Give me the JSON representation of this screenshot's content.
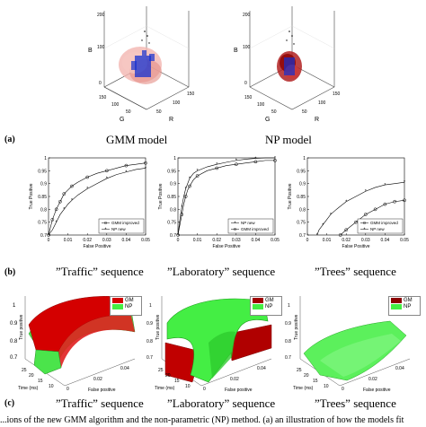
{
  "row_a": {
    "label": "(a)",
    "captions": [
      "GMM model",
      "NP model"
    ],
    "panels": [
      {
        "axis_b": "B",
        "axis_g": "G",
        "axis_r": "R",
        "ticks_z": [
          "200",
          "100",
          "0"
        ],
        "ticks_g": [
          "150",
          "100",
          "50"
        ],
        "ticks_r": [
          "50",
          "100",
          "150"
        ]
      },
      {
        "axis_b": "B",
        "axis_g": "G",
        "axis_r": "R",
        "ticks_z": [
          "200",
          "100",
          "0"
        ],
        "ticks_g": [
          "150",
          "100",
          "50"
        ],
        "ticks_r": [
          "50",
          "100",
          "150"
        ]
      }
    ]
  },
  "row_b": {
    "label": "(b)",
    "captions": [
      "”Traffic” sequence",
      "”Laboratory” sequence",
      "”Trees” sequence"
    ]
  },
  "row_c": {
    "label": "(c)",
    "captions": [
      "”Traffic” sequence",
      "”Laboratory” sequence",
      "”Trees” sequence"
    ],
    "legend": [
      "GM",
      "NP"
    ],
    "zlabel": "True positive",
    "time_label": "Time (ms)",
    "fp_label": "False positive",
    "time_ticks": [
      "25",
      "20",
      "15",
      "10"
    ],
    "fp_ticks": [
      "0",
      "0.02",
      "0.04"
    ],
    "colors": {
      "gm": "#d40000",
      "np": "#44ee44"
    }
  },
  "footer": "...ions of the new GMM algorithm and the non-parametric (NP) method. (a) an illustration of how the models fit",
  "chart_data": [
    {
      "type": "line",
      "title": "",
      "xlabel": "False Positive",
      "ylabel": "True Positive",
      "xlim": [
        0,
        0.05
      ],
      "ylim": [
        0.7,
        1.0
      ],
      "xticks": [
        "0",
        "0.01",
        "0.02",
        "0.03",
        "0.04",
        "0.05"
      ],
      "yticks": [
        "0.7",
        "0.75",
        "0.8",
        "0.85",
        "0.9",
        "0.95",
        "1"
      ],
      "legend_position": "bottom-right",
      "series": [
        {
          "name": "GMM improved",
          "marker": "circle",
          "x": [
            0,
            0.001,
            0.002,
            0.003,
            0.004,
            0.005,
            0.006,
            0.007,
            0.008,
            0.01,
            0.012,
            0.015,
            0.02,
            0.025,
            0.03,
            0.035,
            0.04,
            0.045,
            0.05
          ],
          "y": [
            0.7,
            0.73,
            0.76,
            0.78,
            0.8,
            0.815,
            0.83,
            0.845,
            0.86,
            0.875,
            0.89,
            0.905,
            0.925,
            0.94,
            0.95,
            0.96,
            0.97,
            0.975,
            0.98
          ]
        },
        {
          "name": "NP new",
          "marker": "star",
          "x": [
            0,
            0.002,
            0.004,
            0.006,
            0.008,
            0.01,
            0.012,
            0.015,
            0.02,
            0.025,
            0.03,
            0.035,
            0.04,
            0.045,
            0.05
          ],
          "y": [
            0.7,
            0.72,
            0.75,
            0.78,
            0.8,
            0.82,
            0.835,
            0.855,
            0.88,
            0.9,
            0.92,
            0.935,
            0.945,
            0.955,
            0.96
          ]
        }
      ]
    },
    {
      "type": "line",
      "title": "",
      "xlabel": "False Positive",
      "ylabel": "True Positive",
      "xlim": [
        0,
        0.05
      ],
      "ylim": [
        0.7,
        1.0
      ],
      "xticks": [
        "0",
        "0.01",
        "0.02",
        "0.03",
        "0.04",
        "0.05"
      ],
      "yticks": [
        "0.7",
        "0.75",
        "0.8",
        "0.85",
        "0.9",
        "0.95",
        "1"
      ],
      "legend_position": "bottom-right",
      "series": [
        {
          "name": "NP new",
          "marker": "star",
          "x": [
            0,
            0.001,
            0.002,
            0.003,
            0.004,
            0.005,
            0.006,
            0.008,
            0.01,
            0.015,
            0.02,
            0.025,
            0.03,
            0.035,
            0.04,
            0.045,
            0.05
          ],
          "y": [
            0.7,
            0.76,
            0.81,
            0.85,
            0.88,
            0.9,
            0.92,
            0.94,
            0.95,
            0.965,
            0.975,
            0.983,
            0.99,
            0.995,
            0.998,
            1.0,
            1.0
          ]
        },
        {
          "name": "GMM improved",
          "marker": "circle",
          "x": [
            0,
            0.001,
            0.002,
            0.003,
            0.004,
            0.005,
            0.006,
            0.008,
            0.01,
            0.015,
            0.02,
            0.025,
            0.03,
            0.035,
            0.04,
            0.045,
            0.05
          ],
          "y": [
            0.7,
            0.74,
            0.78,
            0.82,
            0.85,
            0.875,
            0.89,
            0.915,
            0.93,
            0.95,
            0.96,
            0.97,
            0.975,
            0.98,
            0.985,
            0.99,
            0.99
          ]
        }
      ]
    },
    {
      "type": "line",
      "title": "",
      "xlabel": "False Positive",
      "ylabel": "True Positive",
      "xlim": [
        0,
        0.05
      ],
      "ylim": [
        0.7,
        1.0
      ],
      "xticks": [
        "0",
        "0.01",
        "0.02",
        "0.03",
        "0.04",
        "0.05"
      ],
      "yticks": [
        "0.7",
        "0.75",
        "0.8",
        "0.85",
        "0.9",
        "0.95",
        "1"
      ],
      "legend_position": "bottom-right",
      "series": [
        {
          "name": "GMM improved",
          "marker": "circle",
          "x": [
            0.017,
            0.02,
            0.025,
            0.03,
            0.035,
            0.04,
            0.045,
            0.05
          ],
          "y": [
            0.7,
            0.72,
            0.75,
            0.78,
            0.8,
            0.82,
            0.83,
            0.835
          ]
        },
        {
          "name": "NP new",
          "marker": "star",
          "x": [
            0.005,
            0.006,
            0.008,
            0.01,
            0.012,
            0.015,
            0.02,
            0.025,
            0.03,
            0.035,
            0.04,
            0.045,
            0.05
          ],
          "y": [
            0.7,
            0.72,
            0.74,
            0.76,
            0.78,
            0.8,
            0.83,
            0.85,
            0.87,
            0.885,
            0.895,
            0.9,
            0.905
          ]
        }
      ]
    }
  ]
}
